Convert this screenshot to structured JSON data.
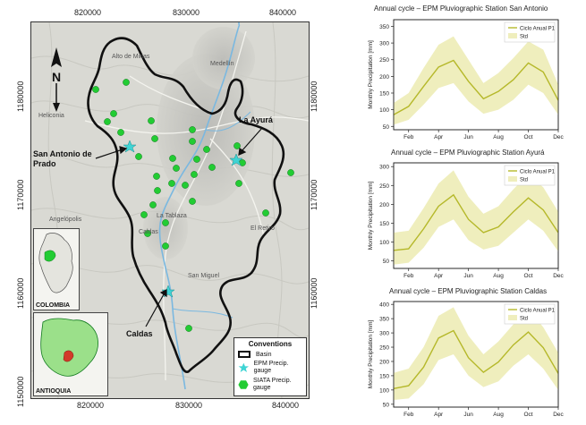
{
  "map": {
    "x_ticks": [
      "820000",
      "830000",
      "840000"
    ],
    "y_ticks": [
      "1180000",
      "1170000",
      "1160000",
      "1150000"
    ],
    "callouts": {
      "san_antonio": "San Antonio de Prado",
      "la_ayura": "La Ayurá",
      "caldas": "Caldas"
    },
    "towns": [
      "Medellín",
      "Heliconia",
      "La Tablaza",
      "Caldas",
      "San Miguel",
      "El Retiro",
      "Angelópolis",
      "Alto de Minas"
    ],
    "north_symbol": "N",
    "insets": {
      "colombia": "COLOMBIA",
      "antioquia": "ANTIOQUIA"
    },
    "legend": {
      "title": "Conventions",
      "basin": "Basin",
      "epm": "EPM Precip. gauge",
      "siata": "SIATA Precip. gauge"
    },
    "colors": {
      "basin": "#111111",
      "epm": "#3fd4d4",
      "siata": "#22cc33",
      "river": "#7ab8e0"
    }
  },
  "charts": {
    "months": [
      "Feb",
      "Apr",
      "Jun",
      "Aug",
      "Oct",
      "Dec"
    ],
    "ylabel": "Monthly Precipitation [mm]",
    "legend": {
      "line": "Ciclo Anual P1",
      "band": "Std"
    },
    "colors": {
      "line": "#b5b82a",
      "band": "#efeebd"
    }
  },
  "chart_data": [
    {
      "type": "line",
      "title": "Annual cycle – EPM Pluviographic Station San Antonio",
      "ylabel": "Monthly Precipitation [mm]",
      "x": [
        1,
        2,
        3,
        4,
        5,
        6,
        7,
        8,
        9,
        10,
        11,
        12
      ],
      "series": [
        {
          "name": "Ciclo Anual P1",
          "values": [
            85,
            110,
            170,
            228,
            248,
            185,
            133,
            155,
            190,
            240,
            213,
            128
          ]
        },
        {
          "name": "Std",
          "lower": [
            55,
            70,
            115,
            165,
            180,
            125,
            88,
            100,
            130,
            175,
            150,
            85
          ],
          "upper": [
            120,
            150,
            225,
            295,
            320,
            250,
            180,
            210,
            255,
            305,
            280,
            175
          ]
        }
      ],
      "yticks": [
        50,
        100,
        150,
        200,
        250,
        300,
        350
      ],
      "ylim": [
        40,
        370
      ]
    },
    {
      "type": "line",
      "title": "Annual cycle – EPM Pluviographic Station Ayurá",
      "ylabel": "Monthly Precipitation [mm]",
      "x": [
        1,
        2,
        3,
        4,
        5,
        6,
        7,
        8,
        9,
        10,
        11,
        12
      ],
      "series": [
        {
          "name": "Ciclo Anual P1",
          "values": [
            78,
            82,
            135,
            195,
            225,
            160,
            125,
            140,
            180,
            217,
            185,
            125
          ]
        },
        {
          "name": "Std",
          "lower": [
            40,
            45,
            85,
            140,
            160,
            105,
            80,
            90,
            125,
            160,
            130,
            75
          ],
          "upper": [
            125,
            130,
            190,
            255,
            290,
            220,
            175,
            195,
            240,
            280,
            245,
            180
          ]
        }
      ],
      "yticks": [
        50,
        100,
        150,
        200,
        250,
        300
      ],
      "ylim": [
        30,
        310
      ]
    },
    {
      "type": "line",
      "title": "Annual cycle – EPM Pluviographic Station Caldas",
      "ylabel": "Monthly Precipitation [mm]",
      "x": [
        1,
        2,
        3,
        4,
        5,
        6,
        7,
        8,
        9,
        10,
        11,
        12
      ],
      "series": [
        {
          "name": "Ciclo Anual P1",
          "values": [
            105,
            115,
            180,
            282,
            308,
            213,
            162,
            198,
            258,
            303,
            248,
            158
          ]
        },
        {
          "name": "Std",
          "lower": [
            65,
            70,
            120,
            205,
            225,
            150,
            110,
            130,
            185,
            225,
            175,
            100
          ],
          "upper": [
            160,
            175,
            250,
            360,
            390,
            290,
            225,
            270,
            330,
            385,
            320,
            230
          ]
        }
      ],
      "yticks": [
        50,
        100,
        150,
        200,
        250,
        300,
        350,
        400
      ],
      "ylim": [
        40,
        410
      ]
    }
  ]
}
